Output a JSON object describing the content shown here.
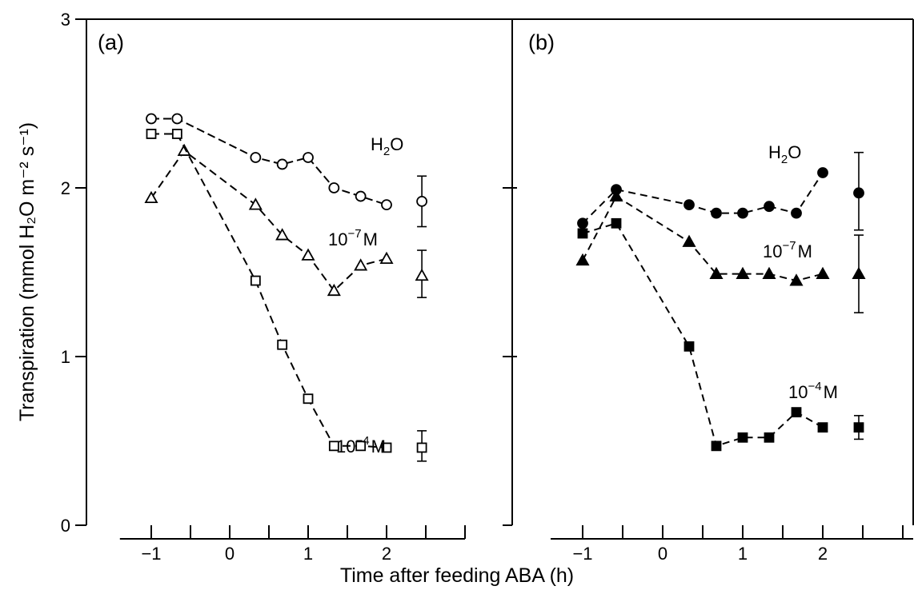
{
  "chart_data": {
    "type": "line",
    "y_axis_label": "Transpiration (mmol H₂O m⁻² s⁻¹)",
    "x_axis_label": "Time after feeding ABA (h)",
    "ylim": [
      0,
      3
    ],
    "y_ticks": [
      "0",
      "1",
      "2",
      "3"
    ],
    "x_ticks": [
      "−1",
      "0",
      "1",
      "2"
    ],
    "xlim": [
      -1.4,
      3.0
    ],
    "panels": [
      {
        "label": "(a)",
        "series": [
          {
            "name_base": "H",
            "name_sub": "2",
            "name_rest": "O",
            "marker": "circle",
            "filled": false,
            "x": [
              -1,
              -0.67,
              0.33,
              0.67,
              1,
              1.33,
              1.67,
              2
            ],
            "y": [
              2.41,
              2.41,
              2.18,
              2.14,
              2.18,
              2.0,
              1.95,
              1.9
            ],
            "mean": 1.92,
            "err_low": 1.77,
            "err_high": 2.07
          },
          {
            "name_base": "10",
            "name_sup": "−7",
            "name_rest": "M",
            "marker": "triangle",
            "filled": false,
            "x": [
              -1,
              -0.58,
              0.33,
              0.67,
              1,
              1.33,
              1.67,
              2
            ],
            "y": [
              1.94,
              2.22,
              1.9,
              1.72,
              1.6,
              1.39,
              1.54,
              1.58
            ],
            "mean": 1.48,
            "err_low": 1.35,
            "err_high": 1.63
          },
          {
            "name_base": "10",
            "name_sup": "−4",
            "name_rest": "M",
            "marker": "square",
            "filled": false,
            "x": [
              -1,
              -0.67,
              0.33,
              0.67,
              1,
              1.33,
              1.67,
              2
            ],
            "y": [
              2.32,
              2.32,
              1.45,
              1.07,
              0.75,
              0.47,
              0.47,
              0.46
            ],
            "mean": 0.46,
            "err_low": 0.38,
            "err_high": 0.56
          }
        ]
      },
      {
        "label": "(b)",
        "series": [
          {
            "name_base": "H",
            "name_sub": "2",
            "name_rest": "O",
            "marker": "circle",
            "filled": true,
            "x": [
              -1,
              -0.58,
              0.33,
              0.67,
              1,
              1.33,
              1.67,
              2
            ],
            "y": [
              1.79,
              1.99,
              1.9,
              1.85,
              1.85,
              1.89,
              1.85,
              2.09
            ],
            "mean": 1.97,
            "err_low": 1.75,
            "err_high": 2.21
          },
          {
            "name_base": "10",
            "name_sup": "−7",
            "name_rest": "M",
            "marker": "triangle",
            "filled": true,
            "x": [
              -1,
              -0.58,
              0.33,
              0.67,
              1,
              1.33,
              1.67,
              2
            ],
            "y": [
              1.57,
              1.95,
              1.68,
              1.49,
              1.49,
              1.49,
              1.45,
              1.49
            ],
            "mean": 1.49,
            "err_low": 1.26,
            "err_high": 1.72
          },
          {
            "name_base": "10",
            "name_sup": "−4",
            "name_rest": "M",
            "marker": "square",
            "filled": true,
            "x": [
              -1,
              -0.58,
              0.33,
              0.67,
              1,
              1.33,
              1.67,
              2
            ],
            "y": [
              1.73,
              1.79,
              1.06,
              0.47,
              0.52,
              0.52,
              0.67,
              0.58
            ],
            "mean": 0.58,
            "err_low": 0.51,
            "err_high": 0.65
          }
        ]
      }
    ]
  }
}
